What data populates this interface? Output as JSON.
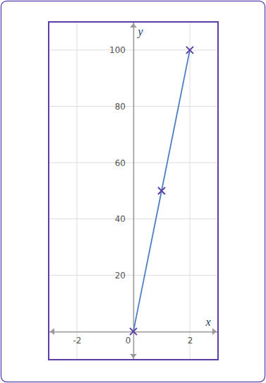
{
  "chart_data": {
    "type": "line",
    "x_label": "x",
    "y_label": "y",
    "x": [
      0,
      1,
      2
    ],
    "values": [
      0,
      50,
      100
    ],
    "color": "#4a7fc4",
    "marker": "x",
    "xlim": [
      -3,
      3
    ],
    "ylim": [
      -10,
      110
    ],
    "xticks": [
      -2,
      0,
      2
    ],
    "yticks": [
      20,
      40,
      60,
      80,
      100
    ],
    "grid": true
  }
}
